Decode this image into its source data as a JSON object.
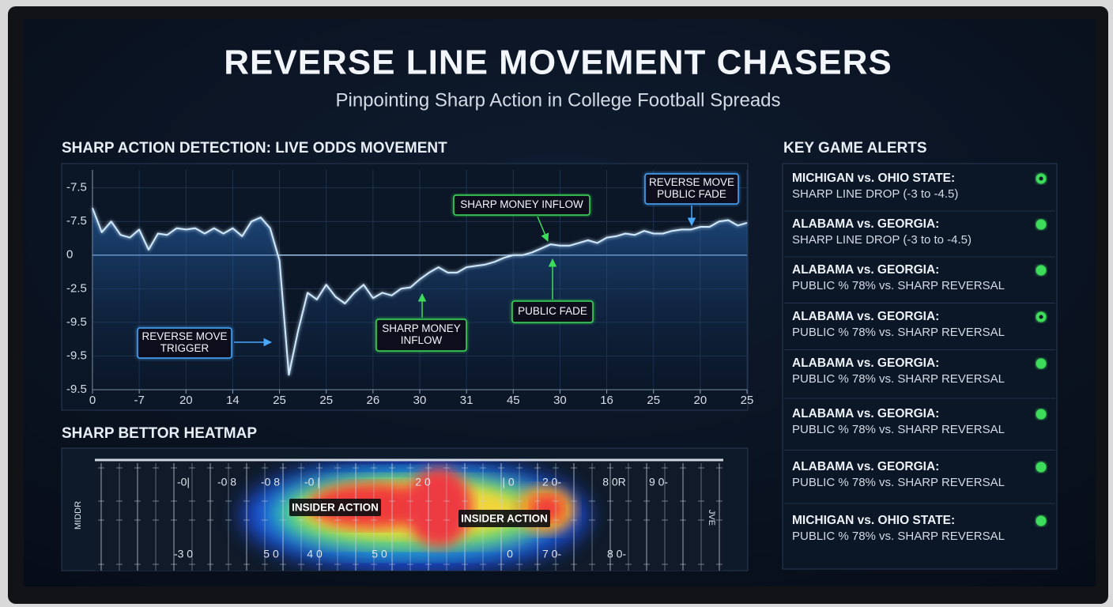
{
  "header": {
    "title": "REVERSE LINE MOVEMENT CHASERS",
    "subtitle": "Pinpointing Sharp Action in College Football Spreads"
  },
  "chart_data": {
    "type": "line",
    "title": "SHARP ACTION DETECTION: LIVE ODDS MOVEMENT",
    "x": [
      0,
      1,
      2,
      3,
      4,
      5,
      6,
      7,
      8,
      9,
      10,
      11,
      12,
      13,
      14,
      15,
      16,
      17,
      18,
      19,
      20,
      21,
      22,
      23,
      24,
      25,
      26,
      27,
      28,
      29,
      30,
      31,
      32,
      33,
      34,
      35,
      36,
      37,
      38,
      39,
      40,
      41,
      42,
      43,
      44,
      45,
      46,
      47,
      48,
      49,
      50,
      51,
      52,
      53,
      54,
      55,
      56,
      57,
      58,
      59,
      60,
      61,
      62,
      63,
      64,
      65,
      66,
      67,
      68,
      69,
      70
    ],
    "series": [
      {
        "color": "#cfe9ff",
        "values": [
          3.5,
          1.7,
          2.5,
          1.5,
          1.3,
          1.9,
          0.4,
          1.6,
          1.5,
          2.0,
          1.9,
          2.0,
          1.6,
          2.0,
          1.6,
          2.0,
          1.4,
          2.5,
          2.8,
          2.0,
          -0.4,
          -8.9,
          -5.6,
          -2.8,
          -3.3,
          -2.2,
          -3.1,
          -3.6,
          -2.8,
          -2.2,
          -3.2,
          -2.8,
          -3.0,
          -2.5,
          -2.4,
          -1.8,
          -1.3,
          -0.9,
          -1.3,
          -1.3,
          -0.9,
          -0.8,
          -0.7,
          -0.5,
          -0.2,
          0,
          0,
          0.2,
          0.5,
          0.8,
          0.7,
          0.7,
          0.9,
          1.1,
          0.9,
          1.3,
          1.4,
          1.6,
          1.5,
          1.8,
          1.6,
          1.6,
          1.8,
          1.9,
          1.9,
          2.1,
          2.1,
          2.5,
          2.6,
          2.2,
          2.4
        ]
      }
    ],
    "xlim": [
      0,
      70
    ],
    "xticks": [
      0,
      {
        "value": 5,
        "label": "-7"
      },
      {
        "value": 10,
        "label": "20"
      },
      {
        "value": 15,
        "label": "14"
      },
      {
        "value": 20,
        "label": "25"
      },
      {
        "value": 25,
        "label": "25"
      },
      {
        "value": 30,
        "label": "26"
      },
      {
        "value": 35,
        "label": "30"
      },
      {
        "value": 40,
        "label": "31"
      },
      {
        "value": 45,
        "label": "45"
      },
      {
        "value": 50,
        "label": "30"
      },
      {
        "value": 55,
        "label": "16"
      },
      {
        "value": 60,
        "label": "25"
      },
      {
        "value": 65,
        "label": "20"
      },
      {
        "value": 70,
        "label": "25"
      }
    ],
    "ylim": [
      -10,
      6.8
    ],
    "yticks": [
      {
        "value": 5,
        "label": "-7.5"
      },
      {
        "value": 2.5,
        "label": "-7.5"
      },
      0,
      -2.5,
      {
        "value": -5,
        "label": "-9.5"
      },
      {
        "value": -7.5,
        "label": "-9.5"
      },
      {
        "value": -10,
        "label": "-9.5"
      }
    ],
    "grid": true,
    "annotations": [
      {
        "lines": [
          "REVERSE MOVE",
          "TRIGGER"
        ],
        "color": "#4aa8ff"
      },
      {
        "lines": [
          "SHARP MONEY INFLOW"
        ],
        "color": "#3ddc5a"
      },
      {
        "lines": [
          "SHARP MONEY",
          "INFLOW"
        ],
        "color": "#3ddc5a"
      },
      {
        "lines": [
          "PUBLIC FADE"
        ],
        "color": "#3ddc5a"
      },
      {
        "lines": [
          "REVERSE MOVE",
          "PUBLIC FADE"
        ],
        "color": "#4aa8ff"
      }
    ]
  },
  "heatmap": {
    "title": "SHARP BETTOR HEATMAP",
    "labels": [
      "INSIDER ACTION",
      "INSIDER ACTION"
    ],
    "end_zones": [
      "MIDDR",
      "JVE"
    ],
    "top_numbers": [
      "-0|",
      "-0 8",
      "-0 8",
      "-0 |",
      "2 0",
      "| 0",
      "2 0-",
      "8 0R",
      "9 0-"
    ],
    "bottom_numbers": [
      "-3 0",
      "5 0",
      "4 0",
      "5 0",
      "0",
      "7 0-",
      "8 0-"
    ]
  },
  "alerts": {
    "title": "KEY GAME ALERTS",
    "items": [
      {
        "game": "MICHIGAN vs. OHIO STATE:",
        "detail": "SHARP LINE DROP (-3 to -4.5)"
      },
      {
        "game": "ALABAMA vs. GEORGIA:",
        "detail": "SHARP LINE DROP (-3 to to -4.5)"
      },
      {
        "game": "ALABAMA vs. GEORGIA:",
        "detail": "PUBLIC % 78% vs. SHARP REVERSAL"
      },
      {
        "game": "ALABAMA vs. GEORGIA:",
        "detail": "PUBLIC % 78% vs. SHARP REVERSAL"
      },
      {
        "game": "ALABAMA vs. GEORGIA:",
        "detail": "PUBLIC % 78% vs. SHARP REVERSAL"
      },
      {
        "game": "ALABAMA vs. GEORGIA:",
        "detail": "PUBLIC % 78% vs. SHARP REVERSAL"
      },
      {
        "game": "ALABAMA vs. GEORGIA:",
        "detail": "PUBLIC % 78% vs. SHARP REVERSAL"
      },
      {
        "game": "MICHIGAN vs. OHIO STATE:",
        "detail": "PUBLIC % 78% vs. SHARP REVERSAL"
      }
    ]
  }
}
